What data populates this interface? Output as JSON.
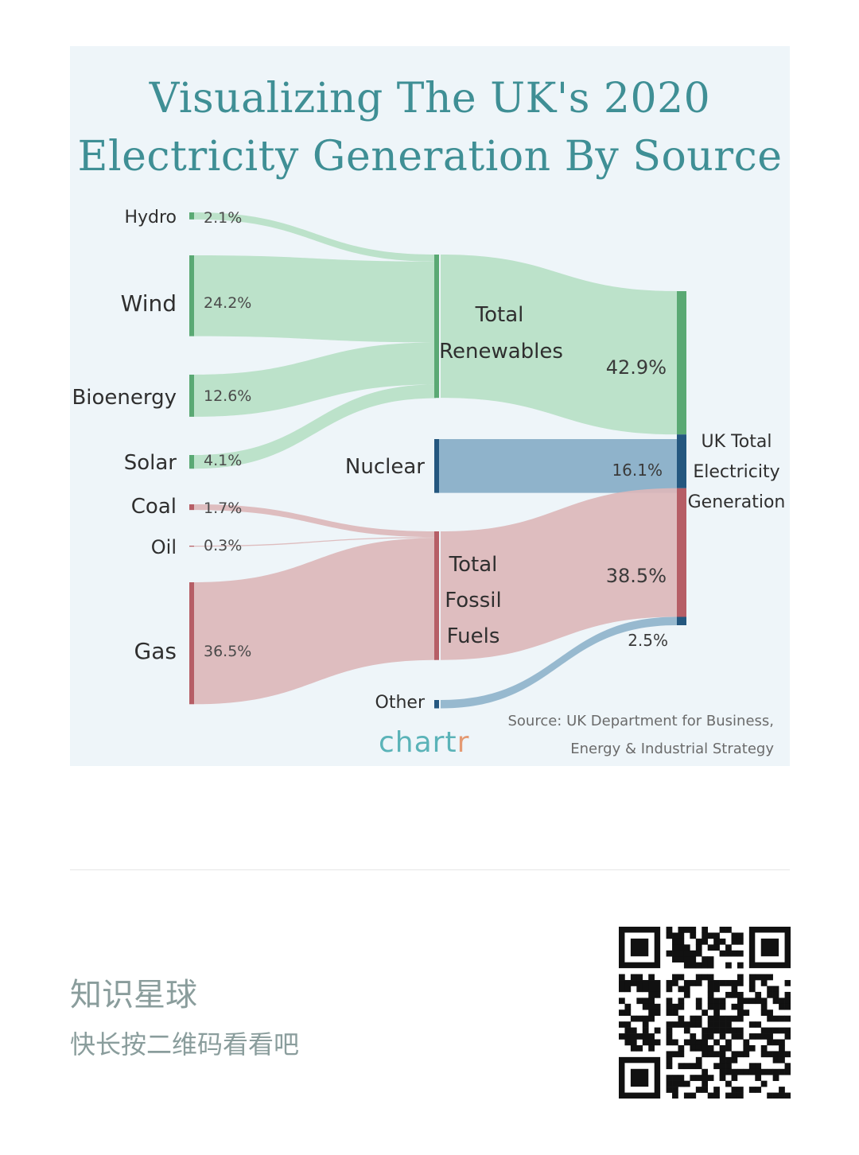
{
  "chart_data": {
    "type": "sankey",
    "title_line1": "Visualizing The UK's 2020",
    "title_line2": "Electricity Generation By Source",
    "unit": "%",
    "nodes": [
      {
        "id": "hydro",
        "label": "Hydro",
        "value": 2.1,
        "value_label": "2.1%",
        "group": "renewables"
      },
      {
        "id": "wind",
        "label": "Wind",
        "value": 24.2,
        "value_label": "24.2%",
        "group": "renewables"
      },
      {
        "id": "bioenergy",
        "label": "Bioenergy",
        "value": 12.6,
        "value_label": "12.6%",
        "group": "renewables"
      },
      {
        "id": "solar",
        "label": "Solar",
        "value": 4.1,
        "value_label": "4.1%",
        "group": "renewables"
      },
      {
        "id": "coal",
        "label": "Coal",
        "value": 1.7,
        "value_label": "1.7%",
        "group": "fossil"
      },
      {
        "id": "oil",
        "label": "Oil",
        "value": 0.3,
        "value_label": "0.3%",
        "group": "fossil"
      },
      {
        "id": "gas",
        "label": "Gas",
        "value": 36.5,
        "value_label": "36.5%",
        "group": "fossil"
      },
      {
        "id": "total_renewables",
        "label_lines": [
          "Total",
          "Renewables"
        ],
        "value": 42.9,
        "value_label": "42.9%"
      },
      {
        "id": "nuclear",
        "label": "Nuclear",
        "value": 16.1,
        "value_label": "16.1%"
      },
      {
        "id": "total_fossil",
        "label_lines": [
          "Total",
          "Fossil",
          "Fuels"
        ],
        "value": 38.5,
        "value_label": "38.5%"
      },
      {
        "id": "other",
        "label": "Other",
        "value": 2.5,
        "value_label": "2.5%"
      },
      {
        "id": "uk_total",
        "label_lines": [
          "UK Total",
          "Electricity",
          "Generation"
        ]
      }
    ],
    "links": [
      {
        "source": "hydro",
        "target": "total_renewables",
        "value": 2.1
      },
      {
        "source": "wind",
        "target": "total_renewables",
        "value": 24.2
      },
      {
        "source": "bioenergy",
        "target": "total_renewables",
        "value": 12.6
      },
      {
        "source": "solar",
        "target": "total_renewables",
        "value": 4.1
      },
      {
        "source": "coal",
        "target": "total_fossil",
        "value": 1.7
      },
      {
        "source": "oil",
        "target": "total_fossil",
        "value": 0.3
      },
      {
        "source": "gas",
        "target": "total_fossil",
        "value": 36.5
      },
      {
        "source": "total_renewables",
        "target": "uk_total",
        "value": 42.9
      },
      {
        "source": "nuclear",
        "target": "uk_total",
        "value": 16.1
      },
      {
        "source": "total_fossil",
        "target": "uk_total",
        "value": 38.5
      },
      {
        "source": "other",
        "target": "uk_total",
        "value": 2.5
      }
    ],
    "colors": {
      "renewables_flow": "#b7dfc6",
      "renewables_bar": "#5aa974",
      "nuclear_flow": "#8fb3cb",
      "nuclear_bar": "#24577f",
      "fossil_flow": "#dcb7ba",
      "fossil_bar": "#b65e66"
    },
    "source_line1": "Source: UK Department for Business,",
    "source_line2": "Energy & Industrial Strategy",
    "brand_main": "chart",
    "brand_r": "r"
  },
  "footer": {
    "title": "知识星球",
    "subtitle": "快长按二维码看看吧"
  }
}
